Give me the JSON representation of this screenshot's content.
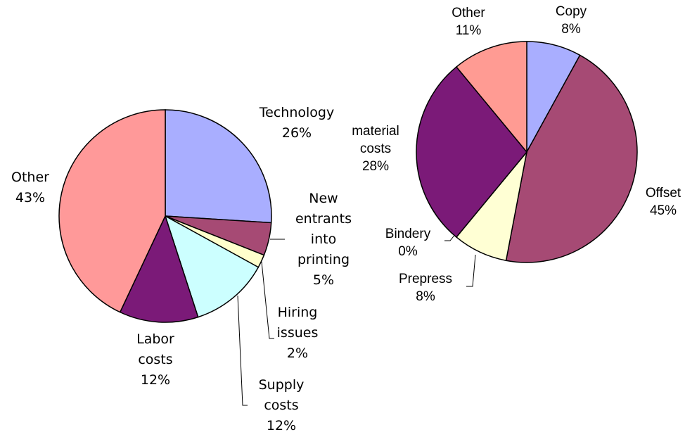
{
  "chart_data": [
    {
      "type": "pie",
      "categories": [
        "Technology",
        "New entrants into printing",
        "Hiring issues",
        "Supply costs",
        "Labor costs",
        "Other"
      ],
      "values": [
        26,
        5,
        2,
        12,
        12,
        43
      ],
      "value_labels": [
        "26%",
        "5%",
        "2%",
        "12%",
        "12%",
        "43%"
      ],
      "colors": [
        "#a9aeff",
        "#a64a74",
        "#ffffcc",
        "#ccffff",
        "#7b1a78",
        "#ff9999"
      ]
    },
    {
      "type": "pie",
      "categories": [
        "Copy",
        "Offset",
        "Prepress",
        "Bindery",
        "material costs",
        "Other"
      ],
      "values": [
        8,
        45,
        8,
        0,
        28,
        11
      ],
      "value_labels": [
        "8%",
        "45%",
        "8%",
        "0%",
        "28%",
        "11%"
      ],
      "colors": [
        "#a9aeff",
        "#a64a74",
        "#ffffd4",
        "#ccffff",
        "#7b1a78",
        "#ff9b93"
      ]
    }
  ]
}
